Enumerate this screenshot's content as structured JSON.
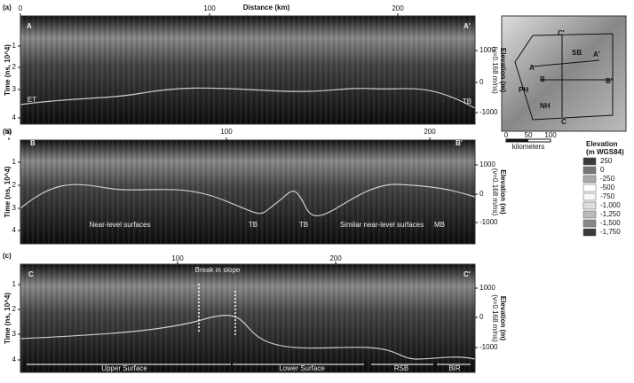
{
  "axis": {
    "distance": "Distance (km)",
    "time": "Time (ns, 10^4)",
    "elevation": "Elevation (m)",
    "velocity": "(v=0.168 m/ns)"
  },
  "panels": [
    {
      "label": "(a)",
      "start": "A",
      "end": "A'",
      "distance_ticks": [
        "0",
        "100",
        "200"
      ],
      "time_ticks": [
        "1",
        "2",
        "3",
        "4"
      ],
      "elevation_ticks": [
        "1000",
        "0",
        "-1000"
      ],
      "annotations": [
        "ET",
        "TB"
      ]
    },
    {
      "label": "(b)",
      "start": "B",
      "end": "B'",
      "distance_ticks": [
        "0",
        "100",
        "200"
      ],
      "time_ticks": [
        "1",
        "2",
        "3",
        "4"
      ],
      "elevation_ticks": [
        "1000",
        "0",
        "-1000"
      ],
      "annotations": [
        "TB",
        "TB",
        "MB",
        "Near-level surfaces",
        "Similar near-level surfaces"
      ]
    },
    {
      "label": "(c)",
      "start": "C",
      "end": "C'",
      "distance_ticks": [
        "100",
        "200"
      ],
      "time_ticks": [
        "1",
        "2",
        "3",
        "4"
      ],
      "elevation_ticks": [
        "1000",
        "0",
        "-1000"
      ],
      "annotations": [
        "Break in slope",
        "Upper Surface",
        "Lower Surface",
        "RSB",
        "BIR"
      ]
    }
  ],
  "map": {
    "labels": [
      "C'",
      "A",
      "SB",
      "A'",
      "B",
      "B'",
      "PH",
      "NH",
      "C"
    ],
    "scale": [
      "0",
      "50",
      "100"
    ],
    "scale_unit": "kilometers"
  },
  "legend": {
    "title": [
      "Elevation",
      "(m WGS84)"
    ],
    "entries": [
      "250",
      "0",
      "-250",
      "-500",
      "-750",
      "-1,000",
      "-1,250",
      "-1,500",
      "-1,750"
    ]
  }
}
